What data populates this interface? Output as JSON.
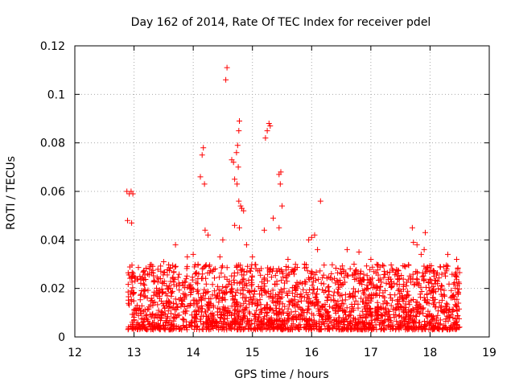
{
  "chart_data": {
    "type": "scatter",
    "title": "Day 162 of 2014, Rate Of TEC Index for receiver pdel",
    "xlabel": "GPS time / hours",
    "ylabel": "ROTI / TECUs",
    "xlim": [
      12,
      19
    ],
    "ylim": [
      0,
      0.12
    ],
    "x_ticks": [
      12,
      13,
      14,
      15,
      16,
      17,
      18,
      19
    ],
    "x_tick_labels": [
      "12",
      "13",
      "14",
      "15",
      "16",
      "17",
      "18",
      "19"
    ],
    "y_ticks": [
      0,
      0.02,
      0.04,
      0.06,
      0.08,
      0.1,
      0.12
    ],
    "y_tick_labels": [
      "0",
      "0.02",
      "0.04",
      "0.06",
      "0.08",
      "0.1",
      "0.12"
    ],
    "grid": true,
    "marker": "+",
    "color": "#ff0000",
    "series": [
      {
        "name": "ROTI",
        "note": "dense background band approx. 0.003-0.03 TECU/s over 12.9-18.5 h plus notable elevated points",
        "band_x": [
          12.9,
          18.5
        ],
        "band_y": [
          0.003,
          0.03
        ],
        "points": [
          [
            12.88,
            0.06
          ],
          [
            12.92,
            0.059
          ],
          [
            12.95,
            0.06
          ],
          [
            12.98,
            0.059
          ],
          [
            12.89,
            0.048
          ],
          [
            12.96,
            0.047
          ],
          [
            13.5,
            0.031
          ],
          [
            13.7,
            0.038
          ],
          [
            13.9,
            0.033
          ],
          [
            14.0,
            0.034
          ],
          [
            14.12,
            0.066
          ],
          [
            14.15,
            0.075
          ],
          [
            14.17,
            0.078
          ],
          [
            14.19,
            0.063
          ],
          [
            14.2,
            0.044
          ],
          [
            14.25,
            0.042
          ],
          [
            14.45,
            0.033
          ],
          [
            14.5,
            0.04
          ],
          [
            14.55,
            0.106
          ],
          [
            14.57,
            0.111
          ],
          [
            14.65,
            0.073
          ],
          [
            14.68,
            0.072
          ],
          [
            14.7,
            0.065
          ],
          [
            14.73,
            0.076
          ],
          [
            14.75,
            0.079
          ],
          [
            14.77,
            0.085
          ],
          [
            14.78,
            0.089
          ],
          [
            14.76,
            0.07
          ],
          [
            14.74,
            0.063
          ],
          [
            14.77,
            0.056
          ],
          [
            14.8,
            0.054
          ],
          [
            14.82,
            0.053
          ],
          [
            14.85,
            0.052
          ],
          [
            14.78,
            0.045
          ],
          [
            14.7,
            0.046
          ],
          [
            14.9,
            0.038
          ],
          [
            15.0,
            0.033
          ],
          [
            15.22,
            0.082
          ],
          [
            15.25,
            0.085
          ],
          [
            15.28,
            0.088
          ],
          [
            15.3,
            0.087
          ],
          [
            15.2,
            0.044
          ],
          [
            15.35,
            0.049
          ],
          [
            15.45,
            0.067
          ],
          [
            15.48,
            0.068
          ],
          [
            15.47,
            0.063
          ],
          [
            15.5,
            0.054
          ],
          [
            15.45,
            0.045
          ],
          [
            15.6,
            0.032
          ],
          [
            15.95,
            0.04
          ],
          [
            16.0,
            0.041
          ],
          [
            16.05,
            0.042
          ],
          [
            16.1,
            0.036
          ],
          [
            16.15,
            0.056
          ],
          [
            16.6,
            0.036
          ],
          [
            16.8,
            0.035
          ],
          [
            17.0,
            0.032
          ],
          [
            17.7,
            0.045
          ],
          [
            17.72,
            0.039
          ],
          [
            17.78,
            0.038
          ],
          [
            17.9,
            0.036
          ],
          [
            17.92,
            0.043
          ],
          [
            17.85,
            0.034
          ],
          [
            18.3,
            0.034
          ],
          [
            18.45,
            0.032
          ]
        ]
      }
    ]
  }
}
